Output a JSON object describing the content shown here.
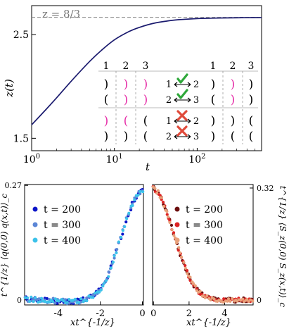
{
  "chart_data": [
    {
      "type": "line",
      "xlabel": "t",
      "ylabel": "z(t)",
      "xscale": "log",
      "xlim": [
        1,
        600
      ],
      "ylim": [
        1.38,
        2.78
      ],
      "xticks": [
        "10^0",
        "10^1",
        "10^2"
      ],
      "yticks": [
        "1.5",
        "2.5"
      ],
      "reference_line": {
        "label": "z = 8/3",
        "y": 2.6667,
        "style": "dashed",
        "color": "#888888"
      },
      "series": [
        {
          "color": "#1a1a6e",
          "x": [
            1,
            1.5,
            2,
            3,
            5,
            7,
            10,
            15,
            20,
            30,
            50,
            70,
            100,
            150,
            200,
            300,
            400,
            600
          ],
          "y": [
            1.63,
            1.78,
            1.89,
            2.05,
            2.24,
            2.35,
            2.45,
            2.53,
            2.57,
            2.61,
            2.638,
            2.648,
            2.655,
            2.659,
            2.661,
            2.663,
            2.664,
            2.665
          ]
        }
      ],
      "inset": {
        "column_labels": [
          "1",
          "2",
          "3",
          "1",
          "2",
          "3"
        ],
        "rows": [
          {
            "left": [
              ")",
              ")",
              ")"
            ],
            "right": [
              ")",
              ")",
              ")"
            ],
            "swap_labels": [
              "1",
              "2"
            ],
            "allowed": true
          },
          {
            "left": [
              "(",
              ")",
              ")"
            ],
            "right": [
              "(",
              ")",
              ")"
            ],
            "swap_labels": [
              "2",
              "3"
            ],
            "allowed": true
          },
          {
            "left": [
              ")",
              "(",
              "("
            ],
            "right": [
              ")",
              ")",
              "("
            ],
            "swap_labels": [
              "1",
              "2"
            ],
            "allowed": false
          },
          {
            "left": [
              ")",
              ")",
              "("
            ],
            "right": [
              ")",
              "(",
              "("
            ],
            "swap_labels": [
              "2",
              "3"
            ],
            "allowed": false
          }
        ],
        "colors": {
          "black": "#000000",
          "magenta": "#e62ea8",
          "check": "#2ea83a",
          "cross": "#e04a3a"
        }
      }
    },
    {
      "type": "scatter",
      "xlabel": "xt^{-1/z}",
      "ylabel": "t^{1/z} ⟨q(0,0) q(x,t)⟩_c",
      "xlim": [
        -5.6,
        0.05
      ],
      "ylim": [
        -0.012,
        0.272
      ],
      "xticks": [
        "-4",
        "-2",
        "0"
      ],
      "yticks": [
        "0.27",
        "0"
      ],
      "legend": "top-left",
      "series": [
        {
          "name": "t = 200",
          "color": "#0b14c8"
        },
        {
          "name": "t = 300",
          "color": "#5b86d6"
        },
        {
          "name": "t = 400",
          "color": "#3cc2ea"
        }
      ],
      "curve": {
        "x": [
          -5.5,
          -5.0,
          -4.5,
          -4.0,
          -3.5,
          -3.0,
          -2.6,
          -2.2,
          -1.9,
          -1.6,
          -1.3,
          -1.0,
          -0.7,
          -0.4,
          -0.2,
          0.0
        ],
        "y": [
          0.002,
          0.0,
          -0.001,
          -0.003,
          -0.004,
          -0.003,
          0.002,
          0.014,
          0.032,
          0.062,
          0.104,
          0.152,
          0.198,
          0.236,
          0.252,
          0.258
        ]
      }
    },
    {
      "type": "scatter",
      "xlabel": "xt^{-1/z}",
      "ylabel": "t^{1/z} ⟨S_z(0,0) S_z(x,t)⟩_c",
      "xlim": [
        -0.05,
        5.6
      ],
      "ylim": [
        -0.014,
        0.33
      ],
      "xticks": [
        "0",
        "2",
        "4"
      ],
      "yticks": [
        "0.32",
        "0"
      ],
      "legend": "top-right",
      "series": [
        {
          "name": "t = 200",
          "color": "#6b0d0d"
        },
        {
          "name": "t = 300",
          "color": "#dd2222"
        },
        {
          "name": "t = 400",
          "color": "#e8a07a"
        }
      ],
      "curve": {
        "x": [
          0.0,
          0.3,
          0.6,
          0.9,
          1.2,
          1.5,
          1.8,
          2.1,
          2.4,
          2.7,
          3.0,
          3.4,
          3.8,
          4.2,
          4.7,
          5.2,
          5.5
        ],
        "y": [
          0.32,
          0.305,
          0.272,
          0.228,
          0.18,
          0.132,
          0.09,
          0.056,
          0.032,
          0.016,
          0.007,
          0.002,
          0.0,
          -0.001,
          0.0,
          0.001,
          0.0
        ]
      }
    }
  ]
}
